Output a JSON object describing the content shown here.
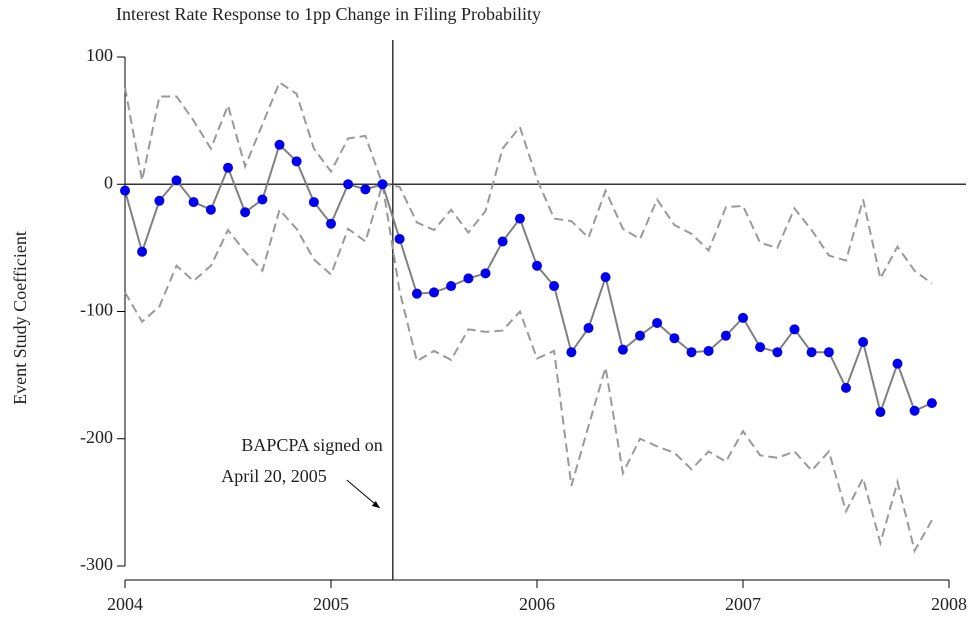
{
  "chart_data": {
    "type": "line",
    "title": "Interest Rate Response to 1pp Change in Filing Probability",
    "y_label": "Event Study Coefficient",
    "x": [
      2004.0,
      2004.083,
      2004.167,
      2004.25,
      2004.333,
      2004.417,
      2004.5,
      2004.583,
      2004.667,
      2004.75,
      2004.833,
      2004.917,
      2005.0,
      2005.083,
      2005.167,
      2005.25,
      2005.333,
      2005.417,
      2005.5,
      2005.583,
      2005.667,
      2005.75,
      2005.833,
      2005.917,
      2006.0,
      2006.083,
      2006.167,
      2006.25,
      2006.333,
      2006.417,
      2006.5,
      2006.583,
      2006.667,
      2006.75,
      2006.833,
      2006.917,
      2007.0,
      2007.083,
      2007.167,
      2007.25,
      2007.333,
      2007.417,
      2007.5,
      2007.583,
      2007.667,
      2007.75,
      2007.833,
      2007.917
    ],
    "series": [
      {
        "color": "#999999",
        "dashed": true,
        "values": [
          76,
          3,
          69,
          69,
          50,
          28,
          62,
          14,
          47,
          80,
          71,
          28,
          10,
          36,
          38,
          0,
          -2,
          -30,
          -36,
          -20,
          -38,
          -21,
          28,
          45,
          4,
          -27,
          -29,
          -42,
          -5,
          -35,
          -43,
          -12,
          -32,
          -39,
          -52,
          -18,
          -17,
          -46,
          -50,
          -19,
          -36,
          -56,
          -60,
          -12,
          -74,
          -49,
          -68,
          -78
        ]
      },
      {
        "color": "#999999",
        "dashed": true,
        "values": [
          -85,
          -108,
          -96,
          -64,
          -76,
          -64,
          -36,
          -53,
          -68,
          -20,
          -35,
          -59,
          -71,
          -35,
          -45,
          0,
          -84,
          -139,
          -131,
          -138,
          -114,
          -116,
          -115,
          -100,
          -137,
          -131,
          -237,
          -190,
          -144,
          -227,
          -200,
          -206,
          -211,
          -224,
          -210,
          -218,
          -194,
          -213,
          -215,
          -210,
          -225,
          -210,
          -257,
          -231,
          -282,
          -234,
          -288,
          -264
        ]
      },
      {
        "color": "#808080",
        "marker_color": "#0000ee",
        "markers": true,
        "values": [
          -5,
          -53,
          -13,
          3,
          -14,
          -20,
          13,
          -22,
          -12,
          31,
          18,
          -14,
          -31,
          0,
          -4,
          0,
          -43,
          -86,
          -85,
          -80,
          -74,
          -70,
          -45,
          -27,
          -64,
          -80,
          -132,
          -113,
          -73,
          -130,
          -119,
          -109,
          -121,
          -132,
          -131,
          -119,
          -105,
          -128,
          -132,
          -114,
          -132,
          -132,
          -160,
          -124,
          -179,
          -141,
          -178,
          -172
        ]
      }
    ],
    "xlim": [
      2004,
      2008
    ],
    "xticks": [
      2004,
      2005,
      2006,
      2007,
      2008
    ],
    "ylim": [
      -300,
      100
    ],
    "yticks": [
      -300,
      -200,
      -100,
      0,
      100
    ],
    "hline": 0,
    "event_line": 2005.3,
    "annotation": [
      "BAPCPA signed on",
      "April 20, 2005"
    ]
  }
}
